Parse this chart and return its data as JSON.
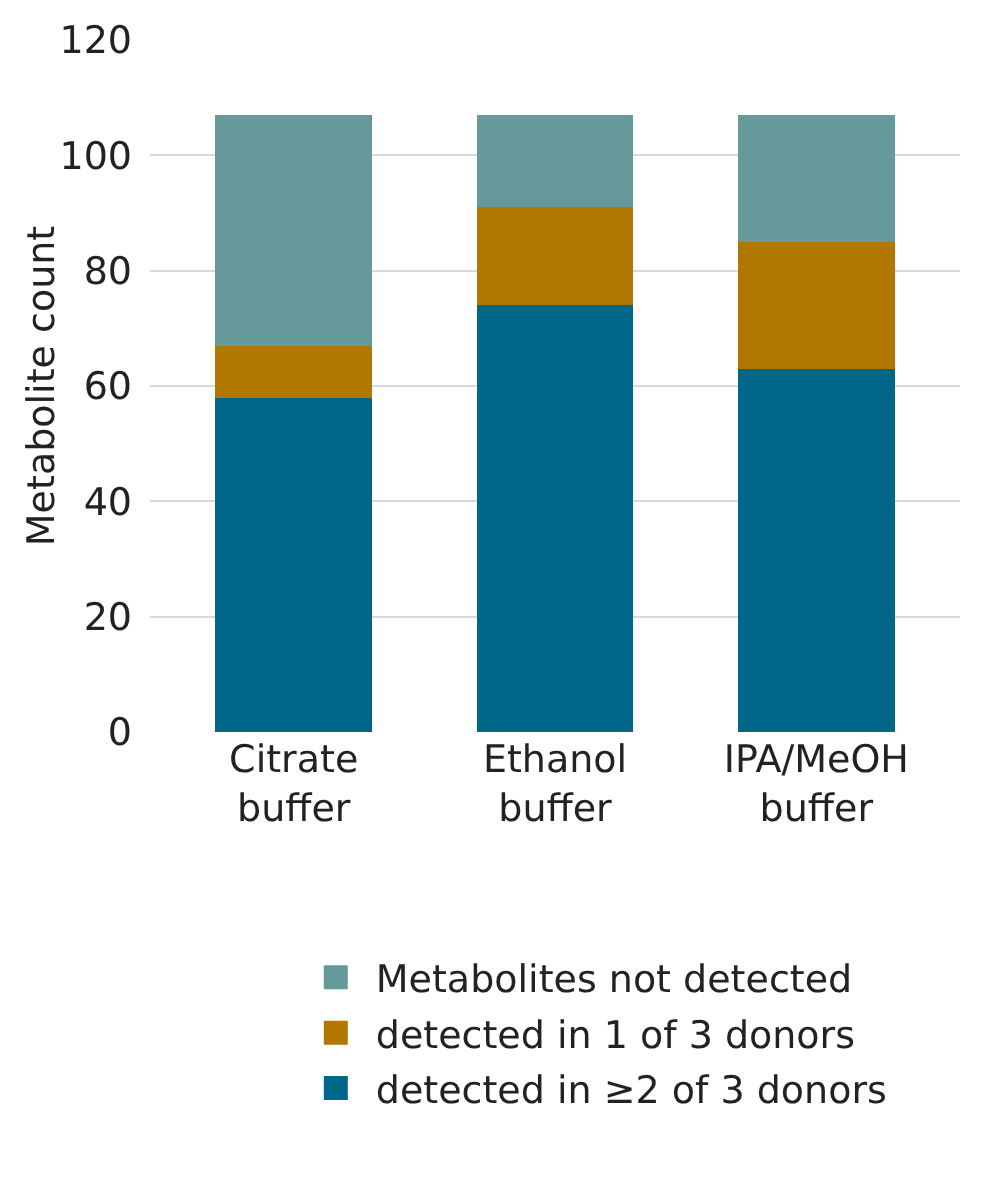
{
  "chart_data": {
    "type": "bar",
    "stacked": true,
    "ylabel": "Metabolite count",
    "categories": [
      "Citrate buffer",
      "Ethanol buffer",
      "IPA/MeOH buffer"
    ],
    "series": [
      {
        "name": "detected in ≥2 of 3 donors",
        "color": "#006788",
        "values": [
          58,
          74,
          63
        ]
      },
      {
        "name": "detected in 1 of 3 donors",
        "color": "#b07800",
        "values": [
          9,
          17,
          22
        ]
      },
      {
        "name": "Metabolites not detected",
        "color": "#669a9a",
        "values": [
          40,
          16,
          22
        ]
      }
    ],
    "ylim": [
      0,
      120
    ],
    "yticks": [
      0,
      20,
      40,
      60,
      80,
      100,
      120
    ],
    "grid": "y",
    "legend": "bottom"
  }
}
